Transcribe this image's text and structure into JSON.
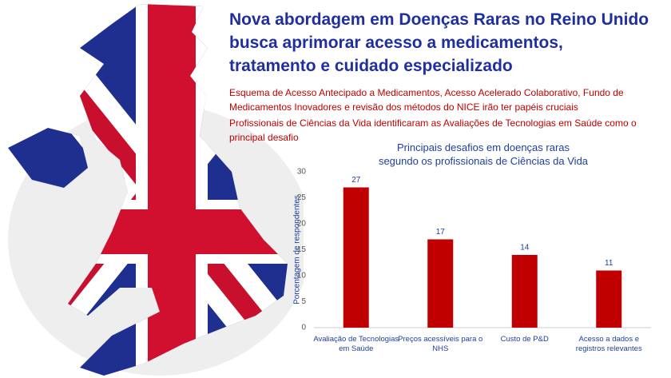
{
  "header": {
    "lines": [
      "Nova abordagem em Doenças Raras no Reino Unido",
      "busca aprimorar acesso a medicamentos,",
      "tratamento e cuidado especializado"
    ]
  },
  "notes": [
    [
      "Esquema de Acesso Antecipado a Medicamentos, Acesso Acelerado Colaborativo, Fundo de",
      "Medicamentos Inovadores e revisão dos métodos do NICE irão ter papéis cruciais"
    ],
    [
      "Profissionais de Ciências da Vida identificaram as Avaliações de Tecnologias em Saúde como o",
      "principal desafio"
    ]
  ],
  "chart_data": {
    "type": "bar",
    "title": [
      "Principais  desafios  em doenças raras",
      "segundo os profissionais  de Ciências da Vida"
    ],
    "y_label": "Porcentagem de respondentes",
    "categories": [
      "Avaliação de Tecnologias em Saúde",
      "Preços acessíveis para o NHS",
      "Custo de P&D",
      "Acesso a dados e registros relevantes"
    ],
    "values": [
      27,
      17,
      14,
      11
    ],
    "color": "#c00000",
    "ylim": [
      0,
      30
    ],
    "yticks": [
      0,
      5,
      10,
      15,
      20,
      25,
      30
    ],
    "grid": false
  }
}
